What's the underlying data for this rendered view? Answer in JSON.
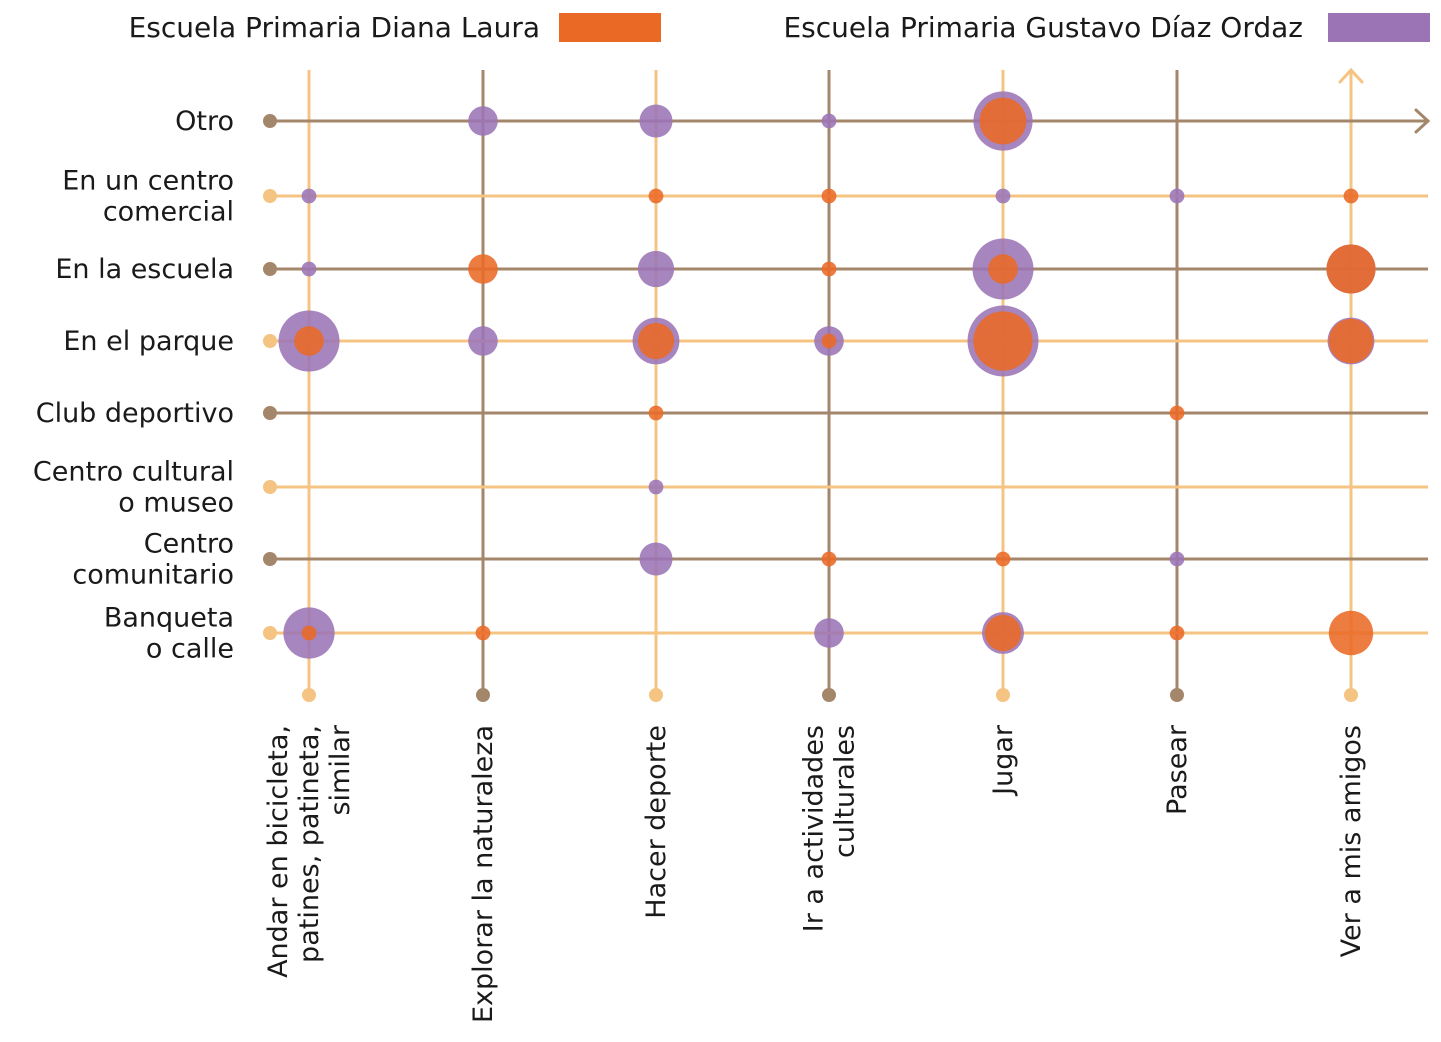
{
  "chart_data": {
    "type": "bubble-matrix",
    "legend": [
      {
        "name": "Escuela Primaria Diana Laura",
        "color": "#ea6a25"
      },
      {
        "name": "Escuela Primaria Gustavo Díaz Ordaz",
        "color": "#9b74b5"
      }
    ],
    "colors": {
      "line_light": "#f5c382",
      "line_dark": "#a4866b",
      "series1": "#ea6a25",
      "series2": "#9b74b5"
    },
    "rows": [
      {
        "key": "otro",
        "lines": [
          "Otro"
        ]
      },
      {
        "key": "centro-comercial",
        "lines": [
          "En un centro",
          "comercial"
        ]
      },
      {
        "key": "escuela",
        "lines": [
          "En la escuela"
        ]
      },
      {
        "key": "parque",
        "lines": [
          "En el parque"
        ]
      },
      {
        "key": "club",
        "lines": [
          "Club deportivo"
        ]
      },
      {
        "key": "centro-cultural",
        "lines": [
          "Centro cultural",
          "o museo"
        ]
      },
      {
        "key": "centro-comunitario",
        "lines": [
          "Centro",
          "comunitario"
        ]
      },
      {
        "key": "banqueta",
        "lines": [
          "Banqueta",
          "o calle"
        ]
      }
    ],
    "columns": [
      {
        "key": "bicicleta",
        "lines": [
          "Andar en bicicleta,",
          "patines, patineta,",
          "similar"
        ]
      },
      {
        "key": "naturaleza",
        "lines": [
          "Explorar la naturaleza"
        ]
      },
      {
        "key": "deporte",
        "lines": [
          "Hacer deporte"
        ]
      },
      {
        "key": "cultura",
        "lines": [
          "Ir a actividades",
          "culturales"
        ]
      },
      {
        "key": "jugar",
        "lines": [
          "Jugar"
        ]
      },
      {
        "key": "pasear",
        "lines": [
          "Pasear"
        ]
      },
      {
        "key": "amigos",
        "lines": [
          "Ver a mis amigos"
        ]
      }
    ],
    "values": {
      "Escuela Primaria Diana Laura": [
        [
          0,
          0,
          0,
          0,
          10,
          0,
          0
        ],
        [
          0,
          0,
          1,
          1,
          0,
          0,
          1
        ],
        [
          0,
          4,
          0,
          1,
          4,
          0,
          11
        ],
        [
          4,
          0,
          6,
          1,
          16,
          0,
          9
        ],
        [
          0,
          0,
          1,
          0,
          0,
          1,
          0
        ],
        [
          0,
          0,
          0,
          0,
          0,
          0,
          0
        ],
        [
          0,
          0,
          0,
          1,
          1,
          0,
          0
        ],
        [
          1,
          1,
          0,
          0,
          6,
          1,
          9
        ]
      ],
      "Escuela Primaria Gustavo Díaz Ordaz": [
        [
          0,
          4,
          5,
          1,
          16,
          0,
          0
        ],
        [
          1,
          0,
          0,
          0,
          1,
          1,
          0
        ],
        [
          1,
          0,
          6,
          0,
          17,
          0,
          11
        ],
        [
          17,
          4,
          10,
          4,
          23,
          0,
          10
        ],
        [
          0,
          0,
          0,
          0,
          0,
          0,
          0
        ],
        [
          0,
          0,
          1,
          0,
          0,
          0,
          0
        ],
        [
          0,
          0,
          5,
          0,
          0,
          1,
          0
        ],
        [
          12,
          0,
          0,
          4,
          8,
          0,
          0
        ]
      ]
    }
  }
}
